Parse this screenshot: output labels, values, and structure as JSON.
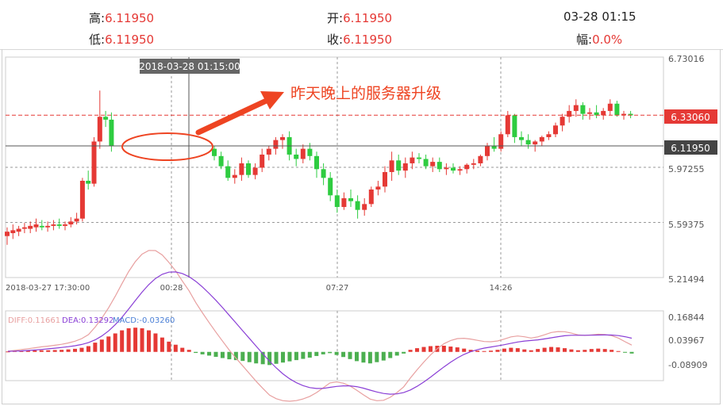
{
  "header": {
    "high_label": "高:",
    "high_value": "6.11950",
    "open_label": "开:",
    "open_value": "6.11950",
    "time": "03-28 01:15",
    "low_label": "低:",
    "low_value": "6.11950",
    "close_label": "收:",
    "close_value": "6.11950",
    "change_label": "幅:",
    "change_value": "0.0%"
  },
  "main": {
    "crosshair_time": "2018-03-28 01:15:00",
    "annotation": "昨天晚上的服务器升级",
    "price_tag_red": "6.33060",
    "price_tag_dark": "6.11950",
    "y_ticks": [
      "6.73016",
      "5.97255",
      "5.59375",
      "5.21494"
    ],
    "x_ticks": [
      "2018-03-27 17:30:00",
      "00:28",
      "07:27",
      "14:26"
    ]
  },
  "macd": {
    "diff_label": "DIFF:0.11661",
    "dea_label": "DEA:0.13292",
    "macd_label": "MACD:-0.03260",
    "y_ticks": [
      "0.16844",
      "0.03967",
      "-0.08909"
    ]
  },
  "colors": {
    "up": "#e53935",
    "down": "#2ecc40",
    "diff_line": "#e8a0a0",
    "dea_line": "#8a3fd6",
    "accent": "#ee4422"
  },
  "chart_data": [
    {
      "type": "candlestick",
      "title": "",
      "x": [
        "2018-03-27 17:30:00",
        "00:28",
        "07:27",
        "14:26"
      ],
      "ylim": [
        5.21494,
        6.73016
      ],
      "y_ticks": [
        6.73016,
        5.97255,
        5.59375,
        5.21494
      ],
      "reference_lines": [
        6.3306,
        6.1195
      ],
      "ohlc": [
        [
          5.5,
          5.56,
          5.44,
          5.53
        ],
        [
          5.52,
          5.58,
          5.48,
          5.54
        ],
        [
          5.53,
          5.57,
          5.5,
          5.55
        ],
        [
          5.55,
          5.59,
          5.52,
          5.56
        ],
        [
          5.55,
          5.6,
          5.52,
          5.57
        ],
        [
          5.56,
          5.62,
          5.53,
          5.58
        ],
        [
          5.57,
          5.61,
          5.54,
          5.56
        ],
        [
          5.56,
          5.6,
          5.53,
          5.57
        ],
        [
          5.57,
          5.61,
          5.54,
          5.58
        ],
        [
          5.58,
          5.62,
          5.55,
          5.57
        ],
        [
          5.57,
          5.6,
          5.54,
          5.58
        ],
        [
          5.58,
          5.63,
          5.56,
          5.6
        ],
        [
          5.6,
          5.66,
          5.58,
          5.62
        ],
        [
          5.62,
          5.9,
          5.6,
          5.88
        ],
        [
          5.88,
          5.95,
          5.82,
          5.86
        ],
        [
          5.86,
          6.18,
          5.84,
          6.15
        ],
        [
          6.15,
          6.5,
          6.1,
          6.32
        ],
        [
          6.32,
          6.36,
          6.25,
          6.3
        ],
        [
          6.3,
          6.35,
          6.08,
          6.12
        ],
        [
          6.1,
          6.12,
          6.02,
          6.05
        ],
        [
          6.05,
          6.08,
          5.96,
          5.98
        ],
        [
          5.98,
          6.02,
          5.88,
          5.9
        ],
        [
          5.9,
          5.96,
          5.86,
          5.92
        ],
        [
          5.92,
          6.04,
          5.88,
          6.0
        ],
        [
          6.0,
          6.02,
          5.9,
          5.92
        ],
        [
          5.92,
          6.0,
          5.89,
          5.97
        ],
        [
          5.97,
          6.1,
          5.94,
          6.06
        ],
        [
          6.06,
          6.12,
          6.02,
          6.1
        ],
        [
          6.1,
          6.18,
          6.06,
          6.16
        ],
        [
          6.16,
          6.2,
          6.1,
          6.18
        ],
        [
          6.18,
          6.22,
          6.02,
          6.06
        ],
        [
          6.06,
          6.1,
          5.98,
          6.03
        ],
        [
          6.03,
          6.13,
          6.0,
          6.1
        ],
        [
          6.1,
          6.14,
          6.02,
          6.05
        ],
        [
          6.05,
          6.08,
          5.9,
          5.96
        ],
        [
          5.96,
          6.0,
          5.85,
          5.9
        ],
        [
          5.9,
          5.94,
          5.74,
          5.78
        ],
        [
          5.78,
          5.82,
          5.66,
          5.7
        ],
        [
          5.7,
          5.8,
          5.68,
          5.76
        ],
        [
          5.76,
          5.82,
          5.7,
          5.74
        ],
        [
          5.74,
          5.78,
          5.62,
          5.68
        ],
        [
          5.68,
          5.76,
          5.64,
          5.72
        ],
        [
          5.72,
          5.84,
          5.7,
          5.82
        ],
        [
          5.82,
          5.88,
          5.78,
          5.84
        ],
        [
          5.84,
          5.98,
          5.8,
          5.94
        ],
        [
          5.94,
          6.08,
          5.88,
          6.02
        ],
        [
          6.02,
          6.06,
          5.92,
          5.95
        ],
        [
          5.95,
          6.04,
          5.9,
          6.0
        ],
        [
          6.0,
          6.08,
          5.96,
          6.04
        ],
        [
          6.04,
          6.07,
          6.0,
          6.03
        ],
        [
          6.03,
          6.06,
          5.96,
          5.98
        ],
        [
          5.98,
          6.04,
          5.94,
          6.01
        ],
        [
          6.01,
          6.04,
          5.94,
          5.96
        ],
        [
          5.96,
          6.0,
          5.92,
          5.97
        ],
        [
          5.97,
          6.0,
          5.93,
          5.95
        ],
        [
          5.95,
          5.98,
          5.92,
          5.96
        ],
        [
          5.96,
          6.0,
          5.93,
          5.99
        ],
        [
          5.99,
          6.03,
          5.96,
          6.0
        ],
        [
          6.0,
          6.06,
          5.98,
          6.05
        ],
        [
          6.05,
          6.14,
          6.02,
          6.12
        ],
        [
          6.12,
          6.18,
          6.08,
          6.1
        ],
        [
          6.1,
          6.22,
          6.08,
          6.2
        ],
        [
          6.2,
          6.36,
          6.18,
          6.33
        ],
        [
          6.33,
          6.34,
          6.14,
          6.18
        ],
        [
          6.18,
          6.22,
          6.12,
          6.16
        ],
        [
          6.16,
          6.2,
          6.1,
          6.13
        ],
        [
          6.13,
          6.16,
          6.08,
          6.15
        ],
        [
          6.15,
          6.19,
          6.12,
          6.18
        ],
        [
          6.18,
          6.22,
          6.16,
          6.2
        ],
        [
          6.2,
          6.28,
          6.18,
          6.26
        ],
        [
          6.26,
          6.34,
          6.22,
          6.32
        ],
        [
          6.32,
          6.4,
          6.28,
          6.36
        ],
        [
          6.36,
          6.44,
          6.32,
          6.4
        ],
        [
          6.4,
          6.42,
          6.3,
          6.34
        ],
        [
          6.34,
          6.38,
          6.3,
          6.35
        ],
        [
          6.35,
          6.4,
          6.31,
          6.33
        ],
        [
          6.33,
          6.38,
          6.3,
          6.36
        ],
        [
          6.36,
          6.44,
          6.33,
          6.41
        ],
        [
          6.41,
          6.43,
          6.32,
          6.33
        ],
        [
          6.33,
          6.36,
          6.3,
          6.34
        ],
        [
          6.34,
          6.36,
          6.31,
          6.33
        ]
      ]
    },
    {
      "type": "macd",
      "series": [
        {
          "name": "DIFF",
          "last": 0.11661
        },
        {
          "name": "DEA",
          "last": 0.13292
        },
        {
          "name": "MACD",
          "last": -0.0326
        }
      ],
      "ylim": [
        -0.14,
        0.2
      ],
      "y_ticks": [
        0.16844,
        0.03967,
        -0.08909
      ],
      "histogram": [
        0.002,
        0.004,
        0.005,
        0.006,
        0.007,
        0.008,
        0.008,
        0.009,
        0.01,
        0.012,
        0.015,
        0.02,
        0.028,
        0.045,
        0.06,
        0.075,
        0.09,
        0.105,
        0.115,
        0.118,
        0.115,
        0.105,
        0.09,
        0.07,
        0.05,
        0.035,
        0.02,
        0.01,
        -0.005,
        -0.012,
        -0.018,
        -0.024,
        -0.03,
        -0.036,
        -0.04,
        -0.044,
        -0.05,
        -0.056,
        -0.06,
        -0.064,
        -0.058,
        -0.052,
        -0.046,
        -0.04,
        -0.034,
        -0.028,
        -0.02,
        -0.012,
        -0.006,
        -0.015,
        -0.025,
        -0.035,
        -0.045,
        -0.052,
        -0.056,
        -0.05,
        -0.042,
        -0.03,
        -0.018,
        -0.008,
        0.01,
        0.018,
        0.024,
        0.028,
        0.03,
        0.03,
        0.026,
        0.022,
        0.016,
        0.01,
        0.006,
        0.004,
        0.006,
        0.01,
        0.016,
        0.02,
        0.018,
        0.012,
        0.008,
        0.014,
        0.02,
        0.024,
        0.022,
        0.018,
        0.012,
        0.008,
        0.01,
        0.014,
        0.016,
        0.014,
        0.01,
        0.004,
        -0.004,
        -0.008
      ]
    }
  ]
}
